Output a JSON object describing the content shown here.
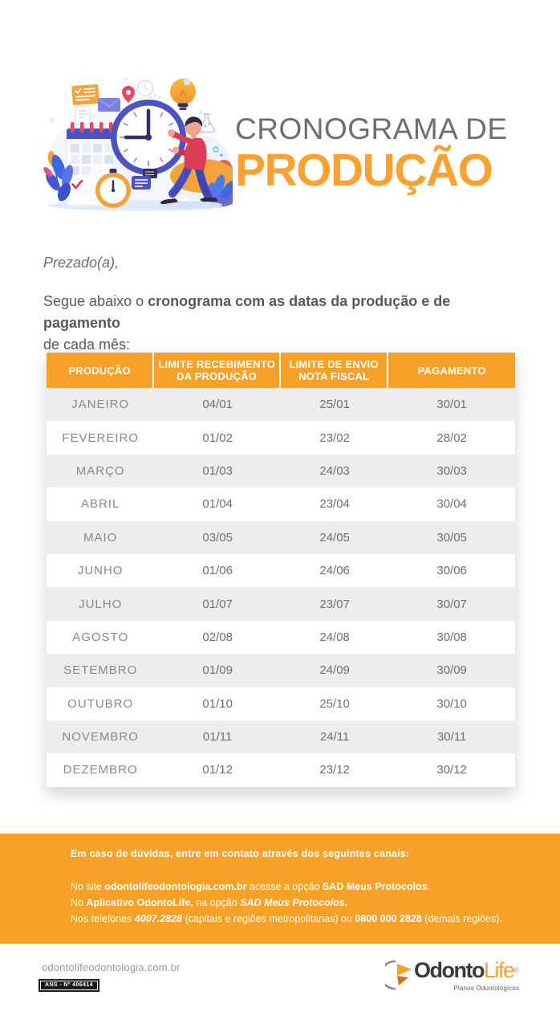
{
  "header": {
    "title_line1": "CRONOGRAMA DE",
    "title_line2": "PRODUÇÃO"
  },
  "intro": {
    "salutation": "Prezado(a),",
    "paragraph_lines": [
      [
        {
          "t": "Segue abaixo o "
        },
        {
          "t": "cronograma com as datas da produção e de pagamento",
          "b": true
        }
      ],
      [
        {
          "t": "de cada mês:"
        }
      ]
    ]
  },
  "table": {
    "headers": [
      [
        "PRODUÇÃO"
      ],
      [
        "LIMITE RECEBIMENTO",
        "DA PRODUÇÃO"
      ],
      [
        "LIMITE DE ENVIO",
        "NOTA FISCAL"
      ],
      [
        "PAGAMENTO"
      ]
    ],
    "rows": [
      [
        "JANEIRO",
        "04/01",
        "25/01",
        "30/01"
      ],
      [
        "FEVEREIRO",
        "01/02",
        "23/02",
        "28/02"
      ],
      [
        "MARÇO",
        "01/03",
        "24/03",
        "30/03"
      ],
      [
        "ABRIL",
        "01/04",
        "23/04",
        "30/04"
      ],
      [
        "MAIO",
        "03/05",
        "24/05",
        "30/05"
      ],
      [
        "JUNHO",
        "01/06",
        "24/06",
        "30/06"
      ],
      [
        "JULHO",
        "01/07",
        "23/07",
        "30/07"
      ],
      [
        "AGOSTO",
        "02/08",
        "24/08",
        "30/08"
      ],
      [
        "SETEMBRO",
        "01/09",
        "24/09",
        "30/09"
      ],
      [
        "OUTUBRO",
        "01/10",
        "25/10",
        "30/10"
      ],
      [
        "NOVEMBRO",
        "01/11",
        "24/11",
        "30/11"
      ],
      [
        "DEZEMBRO",
        "01/12",
        "23/12",
        "30/12"
      ]
    ]
  },
  "contact": {
    "heading": "Em caso de dúvidas, entre em contato através dos seguintes canais:",
    "lines": [
      [
        {
          "t": "No site "
        },
        {
          "t": "odontolifeodontologia.com.br",
          "b": true
        },
        {
          "t": " acesse a opção "
        },
        {
          "t": "SAD Meus Protocolos",
          "b": true
        },
        {
          "t": "."
        }
      ],
      [
        {
          "t": "No "
        },
        {
          "t": "Aplicativo OdontoLife,",
          "b": true
        },
        {
          "t": " na opção "
        },
        {
          "t": "SAD Meus Protocolos.",
          "b": true,
          "i": true
        }
      ],
      [
        {
          "t": "Nos telefones "
        },
        {
          "t": "4007.2828",
          "b": true,
          "i": true
        },
        {
          "t": " (capitais e regiões metropolitanas) ou "
        },
        {
          "t": "0800 000 2828",
          "b": true
        },
        {
          "t": " (demais regiões)."
        }
      ]
    ]
  },
  "footer": {
    "website": "odontolifeodontologia.com.br",
    "ans_label": "ANS - Nº 406414",
    "logo": {
      "part_dark": "Odonto",
      "part_orange": "Life",
      "registered": "®",
      "tagline": "Planos Odontológicos"
    }
  },
  "colors": {
    "orange": "#F7A128",
    "title_orange": "#F9A231",
    "title_gray": "#6D6E71",
    "body_text": "#58595B",
    "row_gray": "#EDEDEE",
    "month_text": "#87888B",
    "date_text": "#6D6E71",
    "footer_muted": "#97999C",
    "illustration_indigo": "#4A52C4",
    "illustration_red": "#DC3D56"
  }
}
